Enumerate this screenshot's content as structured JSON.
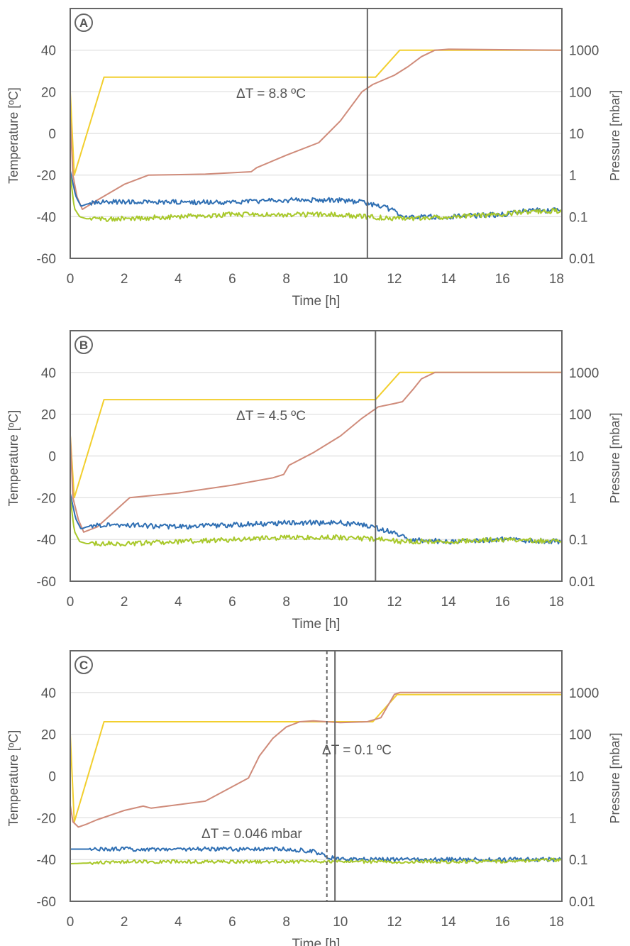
{
  "colors": {
    "shelf_temperature": "#F2CF2E",
    "chamber_pressure": "#CF8B7A",
    "product_temperature_1": "#2F6FB3",
    "product_temperature_2": "#A8C82A",
    "axis": "#666666",
    "grid": "#E3E3E3",
    "text": "#555555"
  },
  "chart_data": [
    {
      "type": "line",
      "panel_label": "A",
      "xlabel": "Time [h]",
      "ylabel": "Temperature [ºC]",
      "ylabel_right": "Pressure [mbar]",
      "xlim": [
        0,
        18.2
      ],
      "ylim": [
        -60,
        60
      ],
      "y2lim": [
        0.01,
        10000
      ],
      "y2scale": "log",
      "x_ticks": [
        0,
        2,
        4,
        6,
        8,
        10,
        12,
        14,
        16,
        18
      ],
      "y_ticks": [
        -60,
        -40,
        -20,
        0,
        20,
        40
      ],
      "y2_ticks": [
        0.01,
        0.1,
        1,
        10,
        100,
        1000
      ],
      "y2_tick_labels": [
        "0.01",
        "0.1",
        "1",
        "10",
        "100",
        "1000"
      ],
      "grid": "horizontal",
      "annotation": "ΔT = 8.8 ºC",
      "endpoint_line_x": 11.0,
      "series": [
        {
          "color_key": "shelf_temperature",
          "axis": "left",
          "x": [
            0,
            0.15,
            1.25,
            11.3,
            12.2,
            18.2
          ],
          "y": [
            20,
            -20,
            27,
            27,
            40,
            40
          ]
        },
        {
          "color_key": "chamber_pressure",
          "axis": "right",
          "x": [
            0,
            0.1,
            0.25,
            0.45,
            1,
            2,
            2.9,
            5,
            6.7,
            6.9,
            8,
            9.2,
            10,
            10.8,
            11.2,
            12,
            12.5,
            13,
            13.5,
            14,
            18.2
          ],
          "y": [
            25,
            1,
            0.3,
            0.15,
            0.25,
            0.6,
            1,
            1.05,
            1.2,
            1.5,
            3,
            6,
            20,
            100,
            150,
            250,
            400,
            700,
            1000,
            1050,
            1000
          ]
        },
        {
          "color_key": "product_temperature_1",
          "axis": "left",
          "noise": 1.2,
          "x": [
            0,
            0.2,
            0.4,
            0.6,
            1,
            2,
            4,
            6,
            8,
            10,
            10.8,
            11.5,
            12,
            12.3,
            14,
            16,
            16.5,
            17,
            18.2
          ],
          "y": [
            -18,
            -30,
            -35,
            -34,
            -33,
            -33,
            -33,
            -33,
            -32,
            -32,
            -33,
            -35,
            -37,
            -40,
            -40,
            -39,
            -38,
            -37,
            -37
          ]
        },
        {
          "color_key": "product_temperature_2",
          "axis": "left",
          "noise": 1.2,
          "x": [
            0,
            0.15,
            0.35,
            0.6,
            1,
            2,
            4,
            6,
            8,
            10,
            11,
            12,
            14,
            16,
            16.5,
            18.2
          ],
          "y": [
            -20,
            -36,
            -40,
            -41,
            -41,
            -41,
            -40,
            -39,
            -39,
            -39,
            -40,
            -41,
            -40,
            -39,
            -38,
            -37
          ]
        }
      ]
    },
    {
      "type": "line",
      "panel_label": "B",
      "xlabel": "Time [h]",
      "ylabel": "Temperature [ºC]",
      "ylabel_right": "Pressure [mbar]",
      "xlim": [
        0,
        18.2
      ],
      "ylim": [
        -60,
        60
      ],
      "y2lim": [
        0.01,
        10000
      ],
      "y2scale": "log",
      "x_ticks": [
        0,
        2,
        4,
        6,
        8,
        10,
        12,
        14,
        16,
        18
      ],
      "y_ticks": [
        -60,
        -40,
        -20,
        0,
        20,
        40
      ],
      "y2_ticks": [
        0.01,
        0.1,
        1,
        10,
        100,
        1000
      ],
      "y2_tick_labels": [
        "0.01",
        "0.1",
        "1",
        "10",
        "100",
        "1000"
      ],
      "grid": "horizontal",
      "annotation": "ΔT = 4.5 ºC",
      "endpoint_line_x": 11.3,
      "series": [
        {
          "color_key": "shelf_temperature",
          "axis": "left",
          "x": [
            0,
            0.15,
            1.25,
            11.3,
            12.2,
            18.2
          ],
          "y": [
            10,
            -20,
            27,
            27,
            40,
            40
          ]
        },
        {
          "color_key": "chamber_pressure",
          "axis": "right",
          "x": [
            0,
            0.1,
            0.3,
            0.5,
            1,
            2.2,
            4,
            6,
            7.5,
            7.9,
            8.1,
            9,
            10,
            10.8,
            11.4,
            12,
            12.3,
            12.7,
            13,
            13.5,
            18.2
          ],
          "y": [
            30,
            1,
            0.3,
            0.15,
            0.2,
            1,
            1.3,
            2,
            3,
            3.6,
            6,
            12,
            30,
            80,
            150,
            180,
            200,
            400,
            700,
            1000,
            1000
          ]
        },
        {
          "color_key": "product_temperature_1",
          "axis": "left",
          "noise": 1.2,
          "x": [
            0,
            0.2,
            0.4,
            0.6,
            1,
            2,
            4,
            6,
            8,
            10,
            10.8,
            11.5,
            12,
            12.5,
            14,
            16,
            18.2
          ],
          "y": [
            -18,
            -30,
            -35,
            -34,
            -33,
            -33,
            -34,
            -33,
            -32,
            -32,
            -33,
            -35,
            -37,
            -40,
            -41,
            -40,
            -41
          ]
        },
        {
          "color_key": "product_temperature_2",
          "axis": "left",
          "noise": 1.2,
          "x": [
            0,
            0.15,
            0.35,
            0.6,
            1,
            2,
            4,
            6,
            8,
            10,
            11.5,
            12.3,
            14,
            16,
            18.2
          ],
          "y": [
            -20,
            -36,
            -41,
            -42,
            -42,
            -42,
            -41,
            -40,
            -39,
            -39,
            -40,
            -41,
            -41,
            -40,
            -41
          ]
        }
      ]
    },
    {
      "type": "line",
      "panel_label": "C",
      "xlabel": "Time [h]",
      "ylabel": "Temperature [ºC]",
      "ylabel_right": "Pressure [mbar]",
      "xlim": [
        0,
        18.2
      ],
      "ylim": [
        -60,
        60
      ],
      "y2lim": [
        0.01,
        10000
      ],
      "y2scale": "log",
      "x_ticks": [
        0,
        2,
        4,
        6,
        8,
        10,
        12,
        14,
        16,
        18
      ],
      "y_ticks": [
        -60,
        -40,
        -20,
        0,
        20,
        40
      ],
      "y2_ticks": [
        0.01,
        0.1,
        1,
        10,
        100,
        1000
      ],
      "y2_tick_labels": [
        "0.01",
        "0.1",
        "1",
        "10",
        "100",
        "1000"
      ],
      "grid": "horizontal",
      "annotation": "ΔT = 0.1 ºC",
      "annotation_2": "ΔT = 0.046 mbar",
      "endpoint_line_x": 9.8,
      "dashed_line_x": 9.5,
      "series": [
        {
          "color_key": "shelf_temperature",
          "axis": "left",
          "x": [
            0,
            0.15,
            1.25,
            11.2,
            12.1,
            18.2
          ],
          "y": [
            20,
            -22,
            26,
            26,
            39,
            39
          ]
        },
        {
          "color_key": "chamber_pressure",
          "axis": "right",
          "x": [
            0,
            0.1,
            0.3,
            0.6,
            1,
            2,
            2.7,
            3,
            5,
            6.6,
            7,
            7.5,
            8,
            8.5,
            9,
            10,
            11,
            11.5,
            12,
            12.2,
            18.2
          ],
          "y": [
            2,
            0.8,
            0.6,
            0.7,
            0.9,
            1.5,
            1.9,
            1.7,
            2.5,
            9,
            30,
            80,
            150,
            200,
            210,
            190,
            200,
            250,
            900,
            1000,
            1000
          ]
        },
        {
          "color_key": "product_temperature_1",
          "axis": "left",
          "noise": 1.0,
          "x": [
            0,
            0.5,
            2,
            4,
            6,
            8,
            9,
            9.6,
            10,
            12,
            14,
            16,
            18.2
          ],
          "y": [
            -35,
            -35,
            -35,
            -35,
            -35,
            -35,
            -36,
            -39,
            -40,
            -40,
            -40,
            -40,
            -40
          ]
        },
        {
          "color_key": "product_temperature_2",
          "axis": "left",
          "noise": 0.8,
          "x": [
            0,
            2,
            4,
            6,
            8,
            9.6,
            10,
            12,
            14,
            16,
            18.2
          ],
          "y": [
            -42,
            -41,
            -41,
            -41,
            -41,
            -41,
            -41,
            -41,
            -41,
            -41,
            -40
          ]
        }
      ]
    }
  ]
}
